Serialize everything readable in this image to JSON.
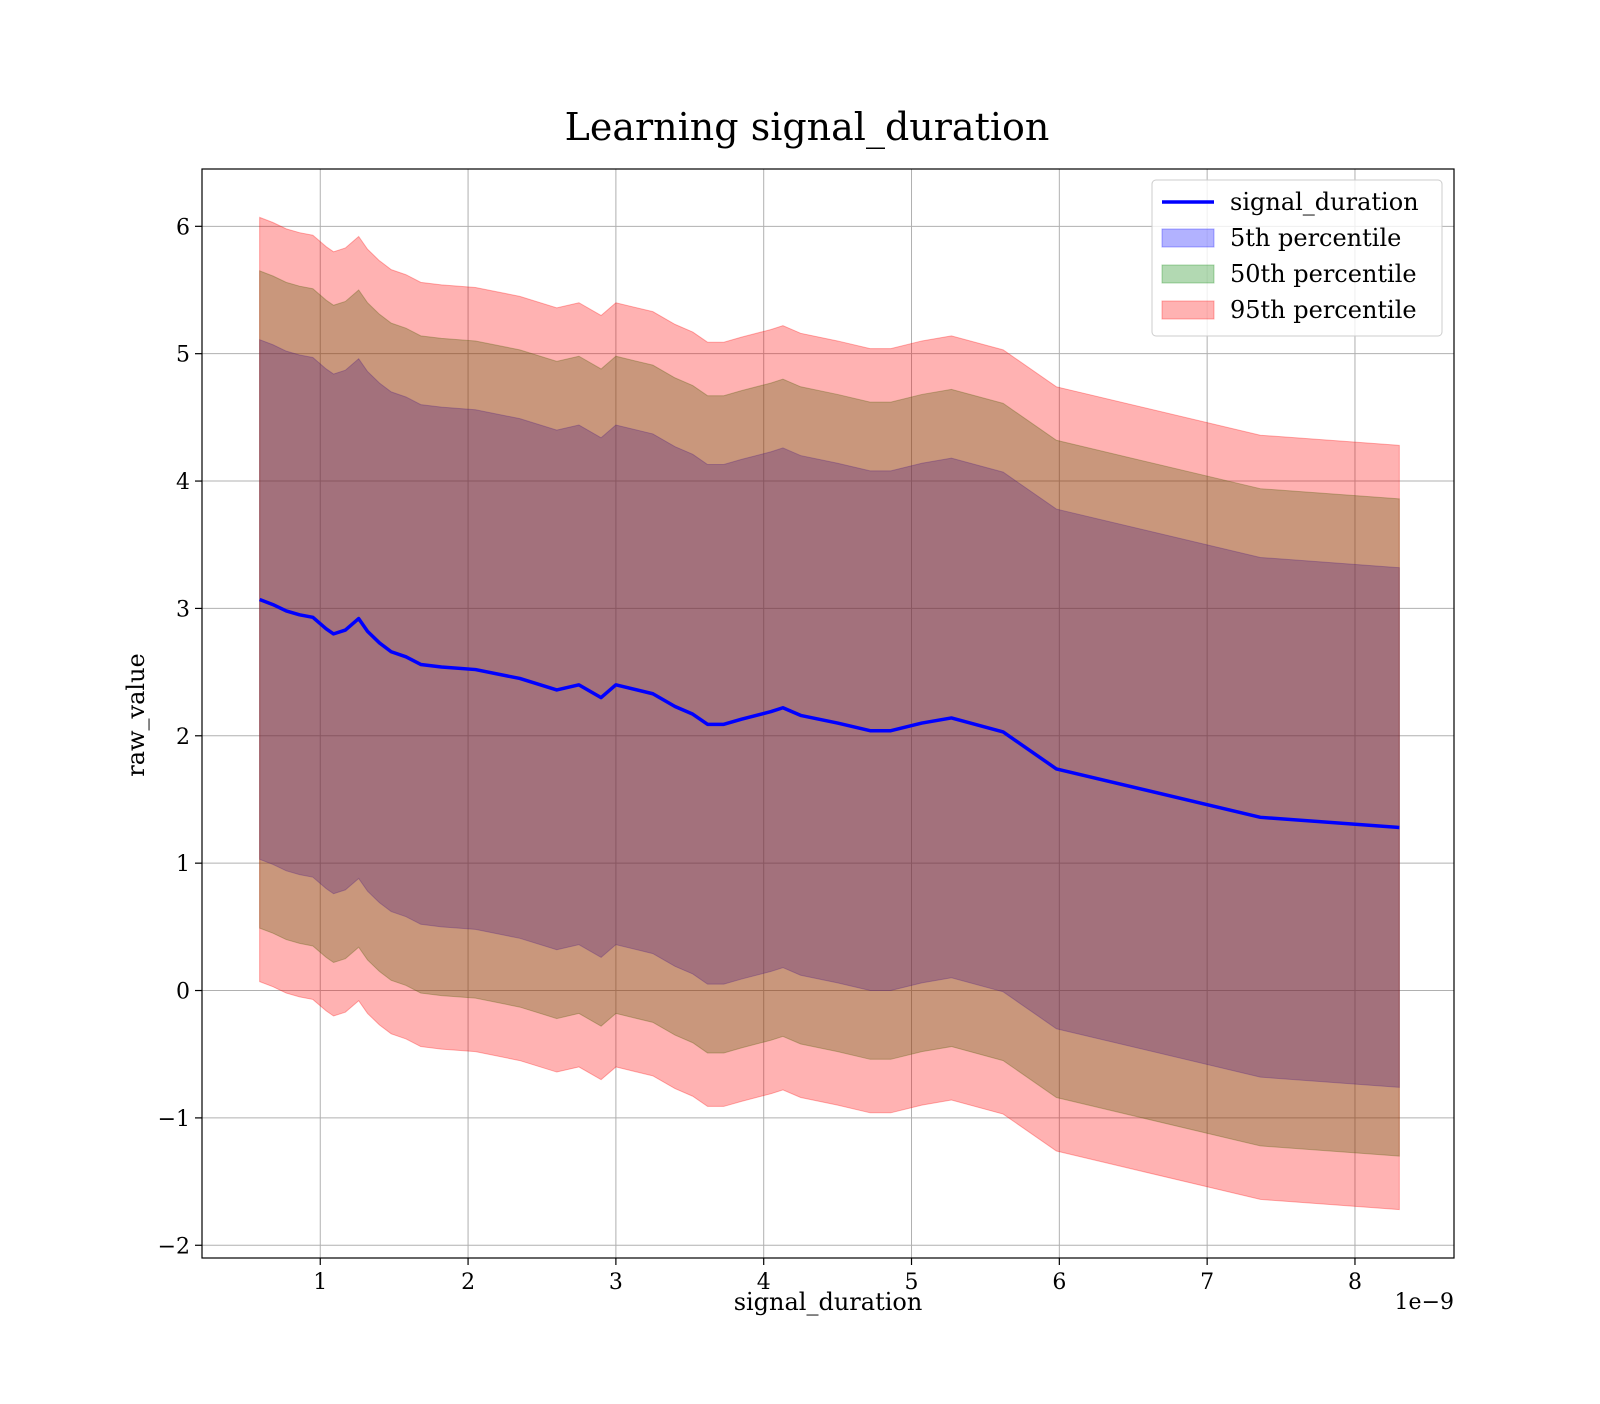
{
  "chart_data": {
    "type": "line",
    "title": "Learning signal_duration",
    "xlabel": "signal_duration",
    "ylabel": "raw_value",
    "x_offset_text": "1e−9",
    "x_scale_factor": 1e-09,
    "xlim": [
      0.2,
      8.67
    ],
    "ylim": [
      -2.1,
      6.45
    ],
    "grid": true,
    "legend_position": "upper right",
    "x_ticks": [
      1,
      2,
      3,
      4,
      5,
      6,
      7,
      8
    ],
    "x_tick_labels": [
      "1",
      "2",
      "3",
      "4",
      "5",
      "6",
      "7",
      "8"
    ],
    "y_ticks": [
      -2,
      -1,
      0,
      1,
      2,
      3,
      4,
      5,
      6
    ],
    "y_tick_labels": [
      "−2",
      "−1",
      "0",
      "1",
      "2",
      "3",
      "4",
      "5",
      "6"
    ],
    "x": [
      0.59,
      0.68,
      0.77,
      0.86,
      0.95,
      1.04,
      1.09,
      1.17,
      1.26,
      1.32,
      1.4,
      1.48,
      1.58,
      1.68,
      1.82,
      2.05,
      2.35,
      2.6,
      2.75,
      2.9,
      3.0,
      3.25,
      3.4,
      3.52,
      3.62,
      3.73,
      3.85,
      4.05,
      4.13,
      4.25,
      4.5,
      4.72,
      4.86,
      5.07,
      5.27,
      5.62,
      5.98,
      7.36,
      8.3
    ],
    "series": [
      {
        "name": "signal_duration",
        "kind": "line",
        "color": "#0000ff",
        "values": [
          3.07,
          3.03,
          2.98,
          2.95,
          2.93,
          2.84,
          2.8,
          2.83,
          2.92,
          2.82,
          2.73,
          2.66,
          2.62,
          2.56,
          2.54,
          2.52,
          2.45,
          2.36,
          2.4,
          2.3,
          2.4,
          2.33,
          2.23,
          2.17,
          2.09,
          2.09,
          2.13,
          2.19,
          2.22,
          2.16,
          2.1,
          2.04,
          2.04,
          2.1,
          2.14,
          2.03,
          1.74,
          1.36,
          1.28
        ]
      },
      {
        "name": "5th percentile",
        "kind": "band",
        "color": "#0000ff",
        "lower": [
          1.03,
          0.99,
          0.94,
          0.91,
          0.89,
          0.8,
          0.76,
          0.79,
          0.88,
          0.78,
          0.69,
          0.62,
          0.58,
          0.52,
          0.5,
          0.48,
          0.41,
          0.32,
          0.36,
          0.26,
          0.36,
          0.29,
          0.19,
          0.13,
          0.05,
          0.05,
          0.09,
          0.15,
          0.18,
          0.12,
          0.06,
          0.0,
          0.0,
          0.06,
          0.1,
          -0.01,
          -0.3,
          -0.68,
          -0.76
        ],
        "upper": [
          5.11,
          5.07,
          5.02,
          4.99,
          4.97,
          4.88,
          4.84,
          4.87,
          4.96,
          4.86,
          4.77,
          4.7,
          4.66,
          4.6,
          4.58,
          4.56,
          4.49,
          4.4,
          4.44,
          4.34,
          4.44,
          4.37,
          4.27,
          4.21,
          4.13,
          4.13,
          4.17,
          4.23,
          4.26,
          4.2,
          4.14,
          4.08,
          4.08,
          4.14,
          4.18,
          4.07,
          3.78,
          3.4,
          3.32
        ]
      },
      {
        "name": "50th percentile",
        "kind": "band",
        "color": "#008000",
        "lower": [
          0.49,
          0.45,
          0.4,
          0.37,
          0.35,
          0.26,
          0.22,
          0.25,
          0.34,
          0.24,
          0.15,
          0.08,
          0.04,
          -0.02,
          -0.04,
          -0.06,
          -0.13,
          -0.22,
          -0.18,
          -0.28,
          -0.18,
          -0.25,
          -0.35,
          -0.41,
          -0.49,
          -0.49,
          -0.45,
          -0.39,
          -0.36,
          -0.42,
          -0.48,
          -0.54,
          -0.54,
          -0.48,
          -0.44,
          -0.55,
          -0.84,
          -1.22,
          -1.3
        ],
        "upper": [
          5.65,
          5.61,
          5.56,
          5.53,
          5.51,
          5.42,
          5.38,
          5.41,
          5.5,
          5.4,
          5.31,
          5.24,
          5.2,
          5.14,
          5.12,
          5.1,
          5.03,
          4.94,
          4.98,
          4.88,
          4.98,
          4.91,
          4.81,
          4.75,
          4.67,
          4.67,
          4.71,
          4.77,
          4.8,
          4.74,
          4.68,
          4.62,
          4.62,
          4.68,
          4.72,
          4.61,
          4.32,
          3.94,
          3.86
        ]
      },
      {
        "name": "95th percentile",
        "kind": "band",
        "color": "#ff0000",
        "lower": [
          0.07,
          0.03,
          -0.02,
          -0.05,
          -0.07,
          -0.16,
          -0.2,
          -0.17,
          -0.08,
          -0.18,
          -0.27,
          -0.34,
          -0.38,
          -0.44,
          -0.46,
          -0.48,
          -0.55,
          -0.64,
          -0.6,
          -0.7,
          -0.6,
          -0.67,
          -0.77,
          -0.83,
          -0.91,
          -0.91,
          -0.87,
          -0.81,
          -0.78,
          -0.84,
          -0.9,
          -0.96,
          -0.96,
          -0.9,
          -0.86,
          -0.97,
          -1.26,
          -1.64,
          -1.72
        ],
        "upper": [
          6.07,
          6.03,
          5.98,
          5.95,
          5.93,
          5.84,
          5.8,
          5.83,
          5.92,
          5.82,
          5.73,
          5.66,
          5.62,
          5.56,
          5.54,
          5.52,
          5.45,
          5.36,
          5.4,
          5.3,
          5.4,
          5.33,
          5.23,
          5.17,
          5.09,
          5.09,
          5.13,
          5.19,
          5.22,
          5.16,
          5.1,
          5.04,
          5.04,
          5.1,
          5.14,
          5.03,
          4.74,
          4.36,
          4.28
        ]
      }
    ]
  }
}
